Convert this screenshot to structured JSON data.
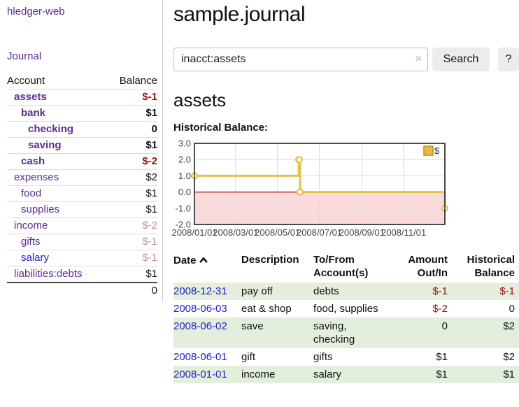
{
  "app": {
    "brand": "hledger-web",
    "nav_journal": "Journal"
  },
  "sidebar_accounts": {
    "headers": {
      "account": "Account",
      "balance": "Balance"
    },
    "rows": [
      {
        "name": "assets",
        "indent": 1,
        "bold": true,
        "balance": "$-1",
        "neg": "strong",
        "link": "purple"
      },
      {
        "name": "bank",
        "indent": 2,
        "bold": true,
        "balance": "$1",
        "neg": "none",
        "link": "purple"
      },
      {
        "name": "checking",
        "indent": 3,
        "bold": true,
        "balance": "0",
        "neg": "none",
        "link": "purple"
      },
      {
        "name": "saving",
        "indent": 3,
        "bold": true,
        "balance": "$1",
        "neg": "none",
        "link": "purple"
      },
      {
        "name": "cash",
        "indent": 2,
        "bold": true,
        "balance": "$-2",
        "neg": "strong",
        "link": "purple"
      },
      {
        "name": "expenses",
        "indent": 1,
        "bold": false,
        "balance": "$2",
        "neg": "none",
        "link": "purple"
      },
      {
        "name": "food",
        "indent": 2,
        "bold": false,
        "balance": "$1",
        "neg": "none",
        "link": "purple"
      },
      {
        "name": "supplies",
        "indent": 2,
        "bold": false,
        "balance": "$1",
        "neg": "none",
        "link": "purple"
      },
      {
        "name": "income",
        "indent": 1,
        "bold": false,
        "balance": "$-2",
        "neg": "soft",
        "link": "purple"
      },
      {
        "name": "gifts",
        "indent": 2,
        "bold": false,
        "balance": "$-1",
        "neg": "soft",
        "link": "purple"
      },
      {
        "name": "salary",
        "indent": 2,
        "bold": false,
        "balance": "$-1",
        "neg": "soft",
        "link": "blue"
      },
      {
        "name": "liabilities:debts",
        "indent": 1,
        "bold": false,
        "balance": "$1",
        "neg": "none",
        "link": "purple"
      }
    ],
    "total": "0"
  },
  "header": {
    "title": "sample.journal"
  },
  "search": {
    "value": "inacct:assets",
    "clear_icon": "×",
    "search_label": "Search",
    "help_label": "?"
  },
  "account_page": {
    "heading": "assets",
    "chart_title": "Historical Balance:"
  },
  "chart_data": {
    "type": "line",
    "step": true,
    "series": [
      {
        "name": "$",
        "points": [
          {
            "date": "2008-01-01",
            "value": 1
          },
          {
            "date": "2008-06-01",
            "value": 2
          },
          {
            "date": "2008-06-02",
            "value": 2
          },
          {
            "date": "2008-06-03",
            "value": 0
          },
          {
            "date": "2008-12-31",
            "value": -1
          }
        ]
      }
    ],
    "x_range": [
      "2008-01-01",
      "2008-12-31"
    ],
    "x_ticks": [
      "2008/01/01",
      "2008/03/01",
      "2008/05/01",
      "2008/07/01",
      "2008/09/01",
      "2008/11/01"
    ],
    "y_ticks": [
      3.0,
      2.0,
      1.0,
      0.0,
      -1.0,
      -2.0
    ],
    "ylim": [
      -2,
      3
    ],
    "grid": true,
    "legend": {
      "label": "$",
      "position": "top-right",
      "fill": "#e5bc3d",
      "border": "#b9921f"
    },
    "line_color": "#e6c149",
    "negative_region_color": "#fadbdb",
    "zero_line_color": "#a00000",
    "border_color": "#4a4a4a",
    "grid_color": "#dcdcdc"
  },
  "register": {
    "headers": {
      "date": "Date",
      "description": "Description",
      "accounts": "To/From Account(s)",
      "amount": "Amount Out/In",
      "balance": "Historical Balance"
    },
    "rows": [
      {
        "date": "2008-12-31",
        "description": "pay off",
        "accounts": "debts",
        "amount": "$-1",
        "amount_neg": true,
        "balance": "$-1",
        "balance_neg": true
      },
      {
        "date": "2008-06-03",
        "description": "eat & shop",
        "accounts": "food, supplies",
        "amount": "$-2",
        "amount_neg": true,
        "balance": "0",
        "balance_neg": false
      },
      {
        "date": "2008-06-02",
        "description": "save",
        "accounts": "saving, checking",
        "amount": "0",
        "amount_neg": false,
        "balance": "$2",
        "balance_neg": false
      },
      {
        "date": "2008-06-01",
        "description": "gift",
        "accounts": "gifts",
        "amount": "$1",
        "amount_neg": false,
        "balance": "$2",
        "balance_neg": false
      },
      {
        "date": "2008-01-01",
        "description": "income",
        "accounts": "salary",
        "amount": "$1",
        "amount_neg": false,
        "balance": "$1",
        "balance_neg": false
      }
    ]
  }
}
